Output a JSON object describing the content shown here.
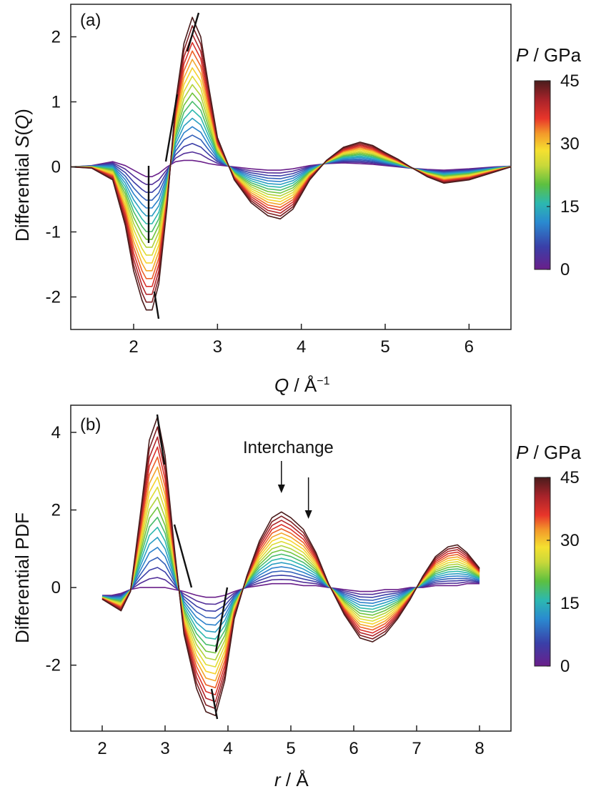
{
  "chart_data": [
    {
      "type": "line",
      "panel_label": "(a)",
      "xlabel_var": "Q",
      "xlabel_rest": " / Å",
      "xlabel_sup": "−1",
      "ylabel_pre": "Differential ",
      "ylabel_var": "S",
      "ylabel_post": "(",
      "ylabel_var2": "Q",
      "ylabel_close": ")",
      "xlim": [
        1.25,
        6.5
      ],
      "ylim": [
        -2.5,
        2.5
      ],
      "xticks": [
        2,
        3,
        4,
        5,
        6
      ],
      "yticks": [
        -2,
        -1,
        0,
        1,
        2
      ],
      "xtick_labels": [
        "2",
        "3",
        "4",
        "5",
        "6"
      ],
      "ytick_labels": [
        "-2",
        "-1",
        "0",
        "1",
        "2"
      ],
      "series_count": 18,
      "x": [
        1.25,
        1.5,
        1.75,
        1.9,
        2.0,
        2.1,
        2.15,
        2.22,
        2.3,
        2.4,
        2.5,
        2.6,
        2.7,
        2.8,
        2.9,
        3.0,
        3.2,
        3.4,
        3.6,
        3.75,
        3.9,
        4.1,
        4.3,
        4.5,
        4.7,
        4.85,
        5.0,
        5.15,
        5.3,
        5.5,
        5.7,
        6.0,
        6.3,
        6.5
      ],
      "series_min": {
        "pressure": 0,
        "values": [
          0,
          0.02,
          0.08,
          0.02,
          -0.05,
          -0.12,
          -0.15,
          -0.15,
          -0.1,
          0.0,
          0.08,
          0.1,
          0.1,
          0.08,
          0.05,
          0.03,
          0.0,
          -0.03,
          -0.05,
          -0.05,
          -0.03,
          0.02,
          0.05,
          0.06,
          0.05,
          0.04,
          0.02,
          0.0,
          -0.02,
          -0.04,
          -0.05,
          -0.03,
          0.0,
          0.01
        ]
      },
      "series_max": {
        "pressure": 45,
        "values": [
          0,
          -0.02,
          -0.2,
          -0.9,
          -1.6,
          -2.05,
          -2.2,
          -2.2,
          -1.8,
          -0.6,
          1.0,
          1.9,
          2.3,
          2.0,
          1.2,
          0.45,
          -0.2,
          -0.55,
          -0.75,
          -0.8,
          -0.65,
          -0.2,
          0.1,
          0.3,
          0.38,
          0.33,
          0.22,
          0.12,
          0.0,
          -0.15,
          -0.25,
          -0.2,
          -0.08,
          0.0
        ]
      },
      "colorbar": {
        "label_var": "P",
        "label_rest": " / GPa",
        "min": 0,
        "max": 45,
        "ticks": [
          0,
          15,
          30,
          45
        ]
      }
    },
    {
      "type": "line",
      "panel_label": "(b)",
      "xlabel_var": "r",
      "xlabel_rest": " / Å",
      "ylabel": "Differential PDF",
      "xlim": [
        1.5,
        8.5
      ],
      "ylim": [
        -3.7,
        4.7
      ],
      "xticks": [
        2,
        3,
        4,
        5,
        6,
        7,
        8
      ],
      "yticks": [
        -2,
        0,
        2,
        4
      ],
      "xtick_labels": [
        "2",
        "3",
        "4",
        "5",
        "6",
        "7",
        "8"
      ],
      "ytick_labels": [
        "-2",
        "0",
        "2",
        "4"
      ],
      "series_count": 18,
      "x": [
        2.0,
        2.15,
        2.3,
        2.45,
        2.6,
        2.75,
        2.88,
        3.0,
        3.15,
        3.3,
        3.5,
        3.65,
        3.8,
        3.95,
        4.1,
        4.3,
        4.5,
        4.7,
        4.85,
        5.0,
        5.2,
        5.4,
        5.6,
        5.85,
        6.1,
        6.3,
        6.5,
        6.7,
        6.9,
        7.1,
        7.3,
        7.5,
        7.65,
        7.8,
        8.0
      ],
      "series_min": {
        "pressure": 0,
        "values": [
          -0.2,
          -0.2,
          -0.15,
          -0.05,
          0.0,
          0.0,
          0.0,
          0.0,
          -0.05,
          -0.1,
          -0.2,
          -0.25,
          -0.25,
          -0.2,
          -0.1,
          0.0,
          0.05,
          0.1,
          0.1,
          0.1,
          0.05,
          0.05,
          0.0,
          -0.05,
          -0.1,
          -0.1,
          -0.05,
          -0.05,
          0.0,
          0.0,
          0.05,
          0.05,
          0.05,
          0.1,
          0.1
        ]
      },
      "series_max": {
        "pressure": 45,
        "values": [
          -0.3,
          -0.45,
          -0.6,
          -0.1,
          1.8,
          3.8,
          4.4,
          3.4,
          1.0,
          -1.2,
          -2.6,
          -3.2,
          -3.3,
          -2.4,
          -0.8,
          0.3,
          1.2,
          1.8,
          1.95,
          1.8,
          1.5,
          0.9,
          0.1,
          -0.7,
          -1.3,
          -1.4,
          -1.2,
          -0.8,
          -0.3,
          0.3,
          0.8,
          1.05,
          1.1,
          0.9,
          0.5
        ]
      },
      "annotation": {
        "text": "Interchange",
        "arrows_x": [
          4.85,
          5.28
        ]
      },
      "colorbar": {
        "label_var": "P",
        "label_rest": " / GPa",
        "min": 0,
        "max": 45,
        "ticks": [
          0,
          15,
          30,
          45
        ]
      }
    }
  ]
}
